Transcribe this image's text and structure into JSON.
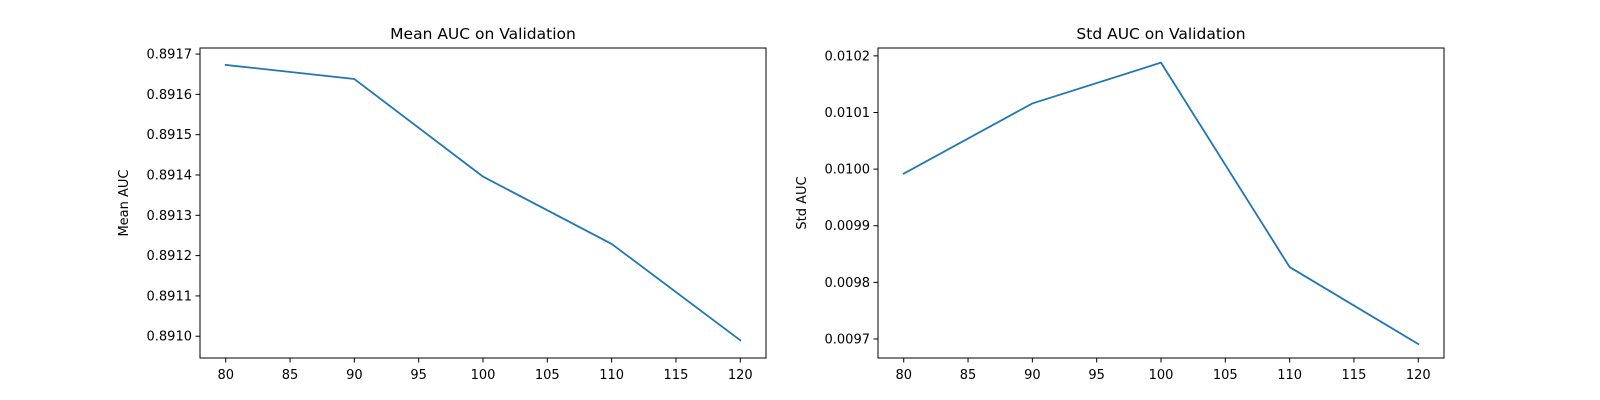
{
  "chart_data": [
    {
      "type": "line",
      "title": "Mean AUC on Validation",
      "xlabel": "",
      "ylabel": "Mean AUC",
      "x": [
        80,
        90,
        100,
        110,
        120
      ],
      "series": [
        {
          "values": [
            0.891673,
            0.891638,
            0.891396,
            0.891229,
            0.89099
          ],
          "color": "#1f77b4"
        }
      ],
      "xlim": [
        78,
        122
      ],
      "ylim": [
        0.890946,
        0.891715
      ],
      "xticks": [
        80,
        85,
        90,
        95,
        100,
        105,
        110,
        115,
        120
      ],
      "xtick_labels": [
        "80",
        "85",
        "90",
        "95",
        "100",
        "105",
        "110",
        "115",
        "120"
      ],
      "yticks": [
        0.891,
        0.8911,
        0.8912,
        0.8913,
        0.8914,
        0.8915,
        0.8916,
        0.8917
      ],
      "ytick_labels": [
        "0.8910",
        "0.8911",
        "0.8912",
        "0.8913",
        "0.8914",
        "0.8915",
        "0.8916",
        "0.8917"
      ],
      "grid": false
    },
    {
      "type": "line",
      "title": "Std AUC on Validation",
      "xlabel": "",
      "ylabel": "Std AUC",
      "x": [
        80,
        90,
        100,
        110,
        120
      ],
      "series": [
        {
          "values": [
            0.009992,
            0.010116,
            0.010188,
            0.009827,
            0.009691
          ],
          "color": "#1f77b4"
        }
      ],
      "xlim": [
        78,
        122
      ],
      "ylim": [
        0.0096664,
        0.0102139
      ],
      "xticks": [
        80,
        85,
        90,
        95,
        100,
        105,
        110,
        115,
        120
      ],
      "xtick_labels": [
        "80",
        "85",
        "90",
        "95",
        "100",
        "105",
        "110",
        "115",
        "120"
      ],
      "yticks": [
        0.0097,
        0.0098,
        0.0099,
        0.01,
        0.0101,
        0.0102
      ],
      "ytick_labels": [
        "0.0097",
        "0.0098",
        "0.0099",
        "0.0100",
        "0.0101",
        "0.0102"
      ],
      "grid": false
    }
  ]
}
